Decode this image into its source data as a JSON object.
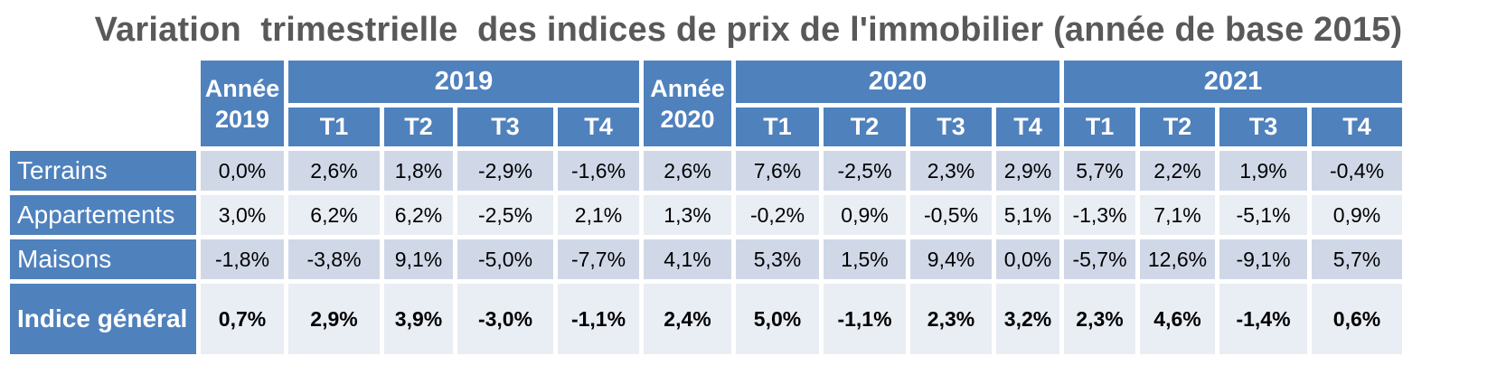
{
  "title": "Variation  trimestrielle  des indices de prix de l'immobilier (année de base 2015)",
  "chart_data": {
    "type": "table",
    "title": "Variation  trimestrielle  des indices de prix de l'immobilier (année de base 2015)",
    "header": {
      "annee_2019": "Année 2019",
      "year_2019": "2019",
      "annee_2020": "Année 2020",
      "year_2020": "2020",
      "year_2021": "2021",
      "quarters": [
        "T1",
        "T2",
        "T3",
        "T4"
      ]
    },
    "rows": [
      {
        "label": "Terrains",
        "values": [
          "0,0%",
          "2,6%",
          "1,8%",
          "-2,9%",
          "-1,6%",
          "2,6%",
          "7,6%",
          "-2,5%",
          "2,3%",
          "2,9%",
          "5,7%",
          "2,2%",
          "1,9%",
          "-0,4%"
        ]
      },
      {
        "label": "Appartements",
        "values": [
          "3,0%",
          "6,2%",
          "6,2%",
          "-2,5%",
          "2,1%",
          "1,3%",
          "-0,2%",
          "0,9%",
          "-0,5%",
          "5,1%",
          "-1,3%",
          "7,1%",
          "-5,1%",
          "0,9%"
        ]
      },
      {
        "label": "Maisons",
        "values": [
          "-1,8%",
          "-3,8%",
          "9,1%",
          "-5,0%",
          "-7,7%",
          "4,1%",
          "5,3%",
          "1,5%",
          "9,4%",
          "0,0%",
          "-5,7%",
          "12,6%",
          "-9,1%",
          "5,7%"
        ]
      },
      {
        "label": "Indice général",
        "values": [
          "0,7%",
          "2,9%",
          "3,9%",
          "-3,0%",
          "-1,1%",
          "2,4%",
          "5,0%",
          "-1,1%",
          "2,3%",
          "3,2%",
          "2,3%",
          "4,6%",
          "-1,4%",
          "0,6%"
        ]
      }
    ]
  }
}
